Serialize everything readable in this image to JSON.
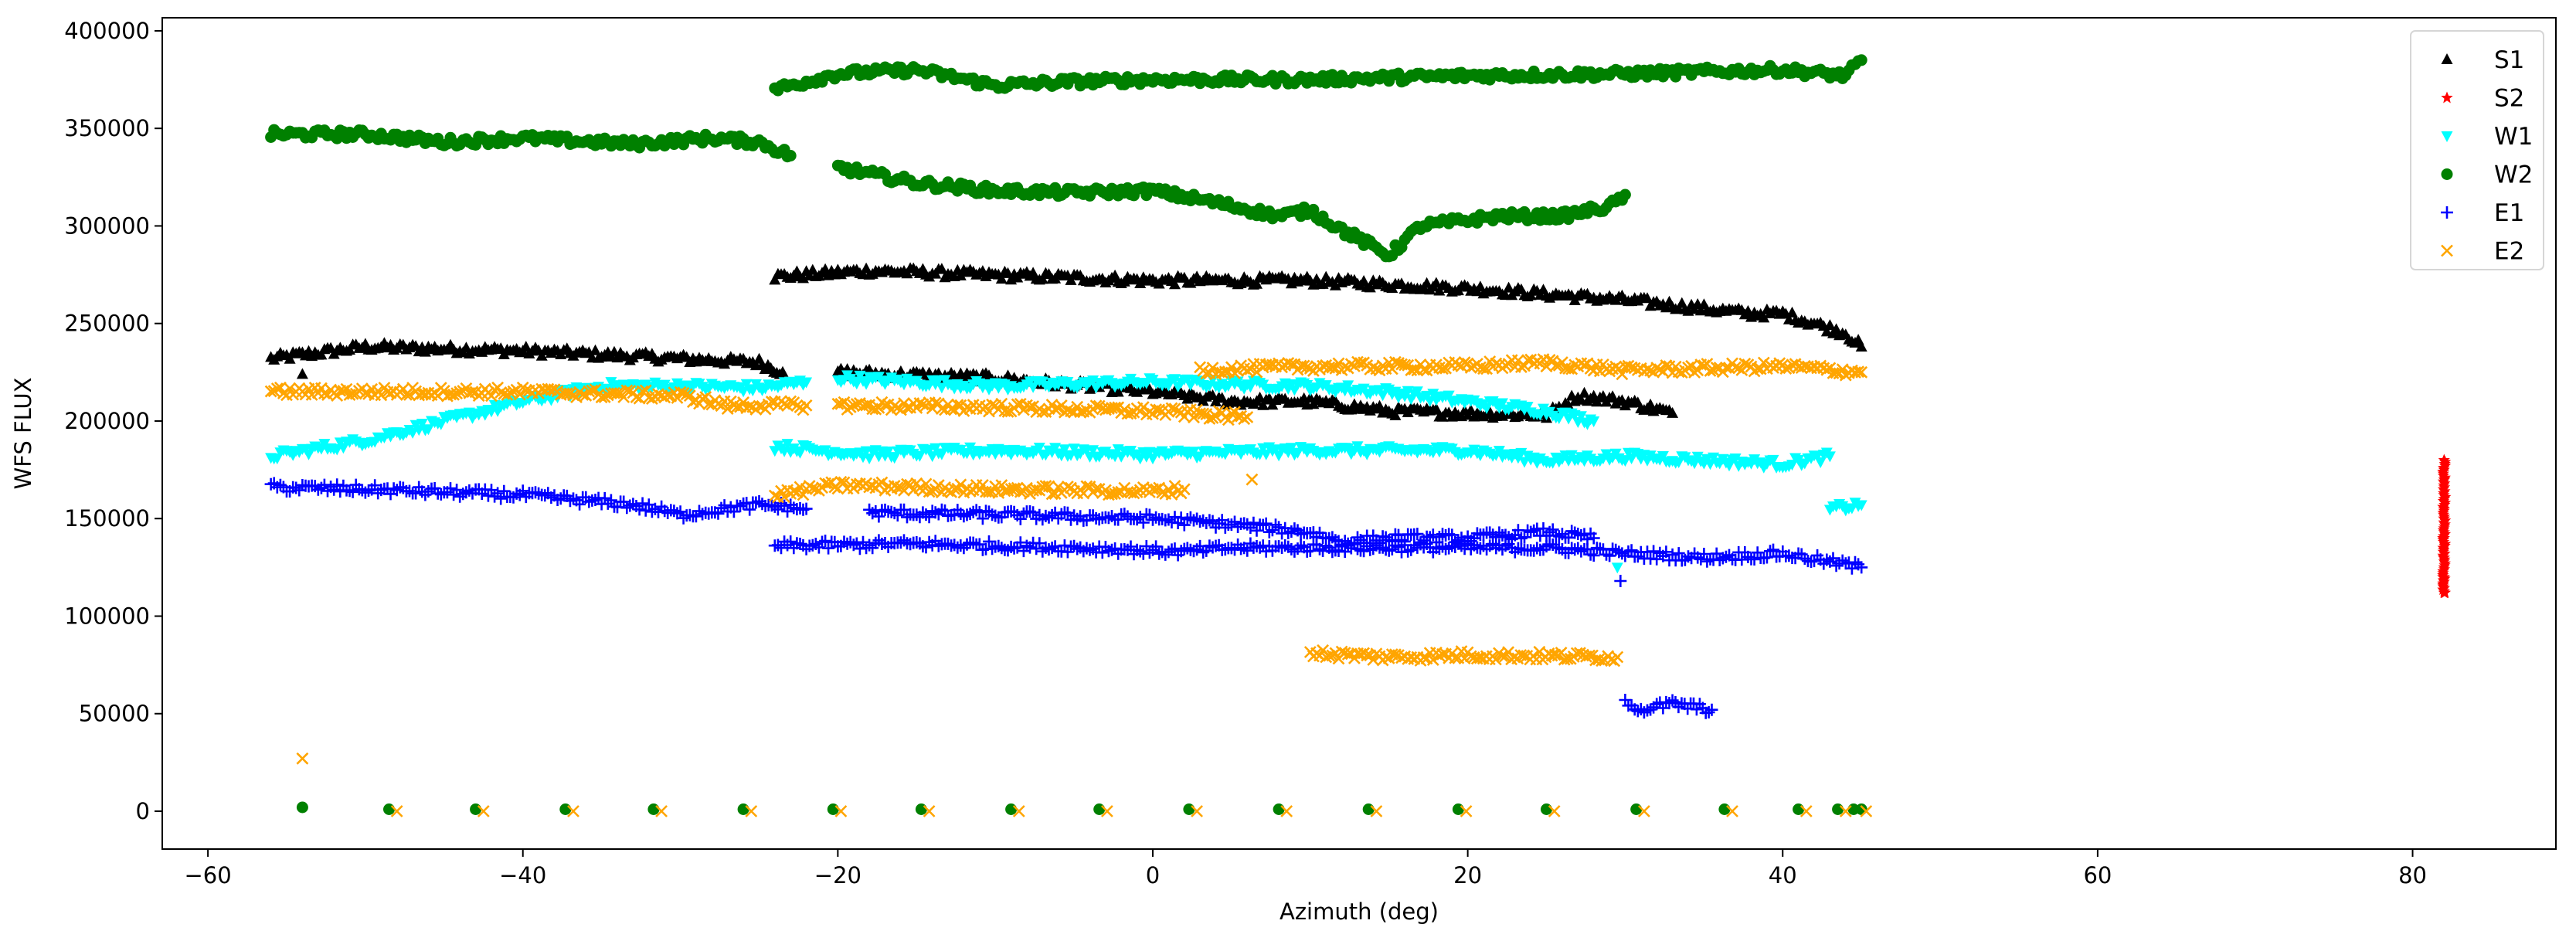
{
  "chart_data": {
    "type": "scatter",
    "title": "",
    "xlabel": "Azimuth (deg)",
    "ylabel": "WFS FLUX",
    "xlim": [
      -62.9,
      89.1
    ],
    "ylim": [
      -19400,
      406700
    ],
    "xticks": [
      -60,
      -40,
      -20,
      0,
      20,
      40,
      60,
      80
    ],
    "xtick_labels": [
      "−60",
      "−40",
      "−20",
      "0",
      "20",
      "40",
      "60",
      "80"
    ],
    "yticks": [
      0,
      50000,
      100000,
      150000,
      200000,
      250000,
      300000,
      350000,
      400000
    ],
    "ytick_labels": [
      "0",
      "50000",
      "100000",
      "150000",
      "200000",
      "250000",
      "300000",
      "350000",
      "400000"
    ],
    "grid": false,
    "legend_position": "top-right",
    "series": [
      {
        "name": "S1",
        "marker": "triangle-up",
        "color": "#000000",
        "segments": [
          [
            [
              -56,
              232000
            ],
            [
              -50,
              238000
            ],
            [
              -40,
              236000
            ],
            [
              -30,
              232000
            ],
            [
              -25,
              230000
            ],
            [
              -23.5,
              225000
            ]
          ],
          [
            [
              -24,
              274000
            ],
            [
              -18,
              277000
            ],
            [
              0,
              272000
            ],
            [
              10,
              272000
            ],
            [
              20,
              268000
            ],
            [
              30,
              262000
            ],
            [
              38,
              255000
            ],
            [
              40,
              255000
            ],
            [
              44,
              245000
            ],
            [
              45,
              238000
            ]
          ],
          [
            [
              -20,
              225000
            ],
            [
              -10,
              222000
            ],
            [
              0,
              215000
            ],
            [
              5,
              210000
            ],
            [
              10,
              210000
            ],
            [
              15,
              205000
            ],
            [
              20,
              204000
            ],
            [
              25,
              203000
            ],
            [
              27,
              213000
            ],
            [
              30,
              210000
            ],
            [
              33,
              204000
            ]
          ]
        ],
        "points": [
          [
            -54,
            224000
          ]
        ]
      },
      {
        "name": "S2",
        "marker": "star",
        "color": "#ff0000",
        "segments": [],
        "points": [
          [
            82,
            112000
          ],
          [
            82,
            120000
          ],
          [
            82,
            130000
          ],
          [
            82,
            140000
          ],
          [
            82,
            150000
          ],
          [
            82,
            160000
          ],
          [
            82,
            170000
          ],
          [
            82,
            180000
          ]
        ]
      },
      {
        "name": "W1",
        "marker": "triangle-down",
        "color": "#00ffff",
        "segments": [
          [
            [
              -56,
              182000
            ],
            [
              -50,
              190000
            ],
            [
              -45,
              200000
            ],
            [
              -40,
              210000
            ],
            [
              -35,
              218000
            ],
            [
              -30,
              218000
            ],
            [
              -25,
              217000
            ],
            [
              -22,
              220000
            ]
          ],
          [
            [
              -20,
              222000
            ],
            [
              -10,
              218000
            ],
            [
              0,
              220000
            ],
            [
              10,
              218000
            ],
            [
              15,
              215000
            ],
            [
              20,
              210000
            ],
            [
              25,
              205000
            ],
            [
              28,
              200000
            ]
          ],
          [
            [
              -24,
              187000
            ],
            [
              -18,
              183000
            ],
            [
              -10,
              185000
            ],
            [
              0,
              183000
            ],
            [
              10,
              185000
            ],
            [
              20,
              185000
            ],
            [
              25,
              180000
            ],
            [
              30,
              182000
            ],
            [
              35,
              180000
            ],
            [
              40,
              178000
            ],
            [
              43,
              182000
            ]
          ],
          [
            [
              43,
              155000
            ],
            [
              45,
              157000
            ]
          ]
        ],
        "points": [
          [
            29.5,
            125000
          ]
        ]
      },
      {
        "name": "W2",
        "marker": "circle",
        "color": "#008000",
        "segments": [
          [
            [
              -56,
              347000
            ],
            [
              -50,
              347000
            ],
            [
              -45,
              343000
            ],
            [
              -40,
              345000
            ],
            [
              -33,
              342000
            ],
            [
              -28,
              345000
            ],
            [
              -25,
              343000
            ],
            [
              -23,
              336000
            ]
          ],
          [
            [
              -24,
              370000
            ],
            [
              -20,
              378000
            ],
            [
              -15,
              380000
            ],
            [
              -10,
              372000
            ],
            [
              -5,
              374000
            ],
            [
              0,
              375000
            ],
            [
              10,
              375000
            ],
            [
              20,
              377000
            ],
            [
              30,
              378000
            ],
            [
              40,
              380000
            ],
            [
              44,
              377000
            ],
            [
              45,
              385000
            ]
          ],
          [
            [
              -20,
              330000
            ],
            [
              -15,
              322000
            ],
            [
              -10,
              318000
            ],
            [
              -5,
              317000
            ],
            [
              0,
              318000
            ],
            [
              4,
              312000
            ],
            [
              8,
              305000
            ],
            [
              10,
              308000
            ],
            [
              12,
              298000
            ],
            [
              15,
              285000
            ],
            [
              17,
              300000
            ],
            [
              22,
              305000
            ],
            [
              26,
              305000
            ],
            [
              29,
              310000
            ],
            [
              30,
              316000
            ]
          ]
        ],
        "points": [
          [
            -54,
            2000
          ],
          [
            -48.5,
            1000
          ],
          [
            -43,
            1000
          ],
          [
            -37.3,
            1000
          ],
          [
            -31.7,
            1000
          ],
          [
            -26,
            1000
          ],
          [
            -20.3,
            1000
          ],
          [
            -14.7,
            1000
          ],
          [
            -9,
            1000
          ],
          [
            -3.4,
            1000
          ],
          [
            2.3,
            1000
          ],
          [
            8,
            1000
          ],
          [
            13.7,
            1000
          ],
          [
            19.4,
            1000
          ],
          [
            25,
            1000
          ],
          [
            30.7,
            1000
          ],
          [
            36.3,
            1000
          ],
          [
            41,
            1000
          ],
          [
            43.5,
            1000
          ],
          [
            44.5,
            1000
          ],
          [
            45,
            1000
          ]
        ]
      },
      {
        "name": "E1",
        "marker": "plus",
        "color": "#0000ff",
        "segments": [
          [
            [
              -56,
              166000
            ],
            [
              -50,
              165000
            ],
            [
              -40,
              162000
            ],
            [
              -33,
              157000
            ],
            [
              -30,
              152000
            ],
            [
              -25,
              157000
            ],
            [
              -22,
              155000
            ]
          ],
          [
            [
              -18,
              153000
            ],
            [
              -10,
              152000
            ],
            [
              0,
              150000
            ],
            [
              5,
              147000
            ],
            [
              10,
              143000
            ],
            [
              12,
              138000
            ],
            [
              15,
              140000
            ],
            [
              20,
              140000
            ],
            [
              25,
              143000
            ],
            [
              28,
              140000
            ]
          ],
          [
            [
              -24,
              136000
            ],
            [
              -15,
              137000
            ],
            [
              -5,
              135000
            ],
            [
              2,
              133000
            ],
            [
              5,
              135000
            ],
            [
              15,
              135000
            ],
            [
              25,
              135000
            ],
            [
              30,
              132000
            ],
            [
              35,
              130000
            ],
            [
              40,
              132000
            ],
            [
              45,
              125000
            ]
          ],
          [
            [
              30,
              57000
            ],
            [
              31,
              52000
            ],
            [
              33,
              55000
            ],
            [
              35.5,
              52000
            ]
          ]
        ],
        "points": [
          [
            29.7,
            118000
          ]
        ]
      },
      {
        "name": "E2",
        "marker": "x",
        "color": "#ffa500",
        "segments": [
          [
            [
              -56,
              215000
            ],
            [
              -40,
              215000
            ],
            [
              -30,
              213000
            ],
            [
              -27,
              208000
            ],
            [
              -22,
              208000
            ]
          ],
          [
            [
              -20,
              208000
            ],
            [
              -10,
              207000
            ],
            [
              0,
              205000
            ],
            [
              6,
              202000
            ]
          ],
          [
            [
              3,
              226000
            ],
            [
              10,
              228000
            ],
            [
              20,
              228000
            ],
            [
              25,
              230000
            ],
            [
              30,
              226000
            ],
            [
              40,
              228000
            ],
            [
              45,
              225000
            ]
          ],
          [
            [
              -24,
              162000
            ],
            [
              -20,
              167000
            ],
            [
              -10,
              165000
            ],
            [
              0,
              164000
            ],
            [
              2,
              165000
            ]
          ],
          [
            [
              10,
              81000
            ],
            [
              15,
              79000
            ],
            [
              20,
              80000
            ],
            [
              29.5,
              79000
            ]
          ]
        ],
        "points": [
          [
            -54,
            27000
          ],
          [
            6.3,
            170000
          ],
          [
            -48,
            0
          ],
          [
            -42.5,
            0
          ],
          [
            -36.8,
            0
          ],
          [
            -31.2,
            0
          ],
          [
            -25.5,
            0
          ],
          [
            -19.8,
            0
          ],
          [
            -14.2,
            0
          ],
          [
            -8.5,
            0
          ],
          [
            -2.9,
            0
          ],
          [
            2.8,
            0
          ],
          [
            8.5,
            0
          ],
          [
            14.2,
            0
          ],
          [
            19.9,
            0
          ],
          [
            25.5,
            0
          ],
          [
            31.2,
            0
          ],
          [
            36.8,
            0
          ],
          [
            41.5,
            0
          ],
          [
            44,
            0
          ],
          [
            45.3,
            0
          ]
        ]
      }
    ]
  }
}
